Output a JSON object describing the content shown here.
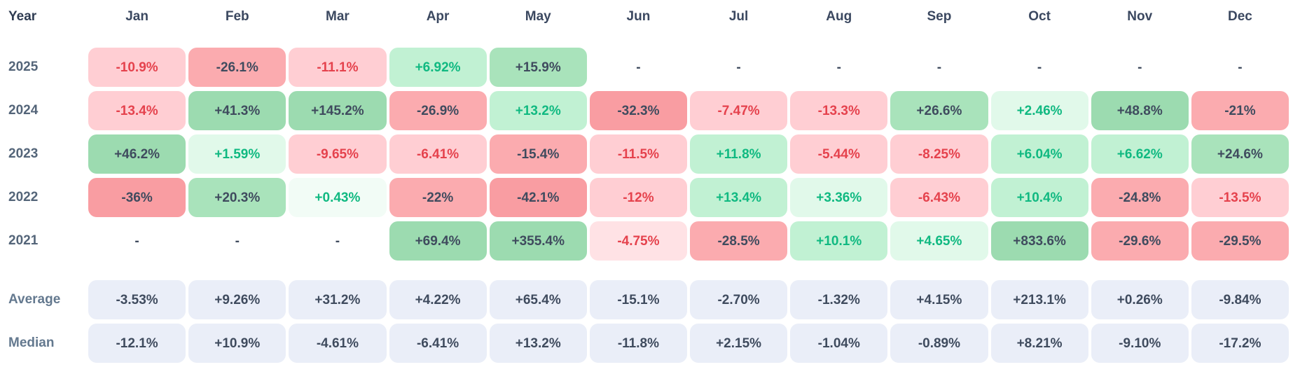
{
  "header": {
    "year_label": "Year",
    "months": [
      "Jan",
      "Feb",
      "Mar",
      "Apr",
      "May",
      "Jun",
      "Jul",
      "Aug",
      "Sep",
      "Oct",
      "Nov",
      "Dec"
    ]
  },
  "rows": [
    {
      "label": "2025",
      "values": [
        "-10.9%",
        "-26.1%",
        "-11.1%",
        "+6.92%",
        "+15.9%",
        "-",
        "-",
        "-",
        "-",
        "-",
        "-",
        "-"
      ]
    },
    {
      "label": "2024",
      "values": [
        "-13.4%",
        "+41.3%",
        "+145.2%",
        "-26.9%",
        "+13.2%",
        "-32.3%",
        "-7.47%",
        "-13.3%",
        "+26.6%",
        "+2.46%",
        "+48.8%",
        "-21%"
      ]
    },
    {
      "label": "2023",
      "values": [
        "+46.2%",
        "+1.59%",
        "-9.65%",
        "-6.41%",
        "-15.4%",
        "-11.5%",
        "+11.8%",
        "-5.44%",
        "-8.25%",
        "+6.04%",
        "+6.62%",
        "+24.6%"
      ]
    },
    {
      "label": "2022",
      "values": [
        "-36%",
        "+20.3%",
        "+0.43%",
        "-22%",
        "-42.1%",
        "-12%",
        "+13.4%",
        "+3.36%",
        "-6.43%",
        "+10.4%",
        "-24.8%",
        "-13.5%"
      ]
    },
    {
      "label": "2021",
      "values": [
        "-",
        "-",
        "-",
        "+69.4%",
        "+355.4%",
        "-4.75%",
        "-28.5%",
        "+10.1%",
        "+4.65%",
        "+833.6%",
        "-29.6%",
        "-29.5%"
      ]
    }
  ],
  "summary_rows": [
    {
      "label": "Average",
      "values": [
        "-3.53%",
        "+9.26%",
        "+31.2%",
        "+4.22%",
        "+65.4%",
        "-15.1%",
        "-2.70%",
        "-1.32%",
        "+4.15%",
        "+213.1%",
        "+0.26%",
        "-9.84%"
      ]
    },
    {
      "label": "Median",
      "values": [
        "-12.1%",
        "+10.9%",
        "-4.61%",
        "-6.41%",
        "+13.2%",
        "-11.8%",
        "+2.15%",
        "-1.04%",
        "-0.89%",
        "+8.21%",
        "-9.10%",
        "-17.2%"
      ]
    }
  ],
  "colors": {
    "green_strong": "#9cdbb0",
    "green_mid": "#a9e3bb",
    "green_light": "#c1f1d3",
    "green_faint": "#e1f9ea",
    "green_trace": "#f2fcf6",
    "red_strong": "#f99da2",
    "red_mid": "#fbabaf",
    "red_light": "#ffced3",
    "red_faint": "#ffe2e5",
    "red_trace": "#fff0f1",
    "neutral_bg": "#eaeef8",
    "text_dark": "#3f4b5e",
    "text_green": "#10b981",
    "text_red": "#e5424d"
  },
  "chart_data": {
    "type": "heatmap",
    "title": "Monthly returns heatmap by year (%)",
    "x": [
      "Jan",
      "Feb",
      "Mar",
      "Apr",
      "May",
      "Jun",
      "Jul",
      "Aug",
      "Sep",
      "Oct",
      "Nov",
      "Dec"
    ],
    "series": [
      {
        "name": "2025",
        "values": [
          -10.9,
          -26.1,
          -11.1,
          6.92,
          15.9,
          null,
          null,
          null,
          null,
          null,
          null,
          null
        ]
      },
      {
        "name": "2024",
        "values": [
          -13.4,
          41.3,
          145.2,
          -26.9,
          13.2,
          -32.3,
          -7.47,
          -13.3,
          26.6,
          2.46,
          48.8,
          -21
        ]
      },
      {
        "name": "2023",
        "values": [
          46.2,
          1.59,
          -9.65,
          -6.41,
          -15.4,
          -11.5,
          11.8,
          -5.44,
          -8.25,
          6.04,
          6.62,
          24.6
        ]
      },
      {
        "name": "2022",
        "values": [
          -36,
          20.3,
          0.43,
          -22,
          -42.1,
          -12,
          13.4,
          3.36,
          -6.43,
          10.4,
          -24.8,
          -13.5
        ]
      },
      {
        "name": "2021",
        "values": [
          null,
          null,
          null,
          69.4,
          355.4,
          -4.75,
          -28.5,
          10.1,
          4.65,
          833.6,
          -29.6,
          -29.5
        ]
      }
    ],
    "summary": [
      {
        "name": "Average",
        "values": [
          -3.53,
          9.26,
          31.2,
          4.22,
          65.4,
          -15.1,
          -2.7,
          -1.32,
          4.15,
          213.1,
          0.26,
          -9.84
        ]
      },
      {
        "name": "Median",
        "values": [
          -12.1,
          10.9,
          -4.61,
          -6.41,
          13.2,
          -11.8,
          2.15,
          -1.04,
          -0.89,
          8.21,
          -9.1,
          -17.2
        ]
      }
    ],
    "value_unit": "%",
    "color_rule": "green positive / red negative, intensity scales with |value|; dark text when |value|>=15, colored text otherwise; summary rows neutral grey"
  }
}
